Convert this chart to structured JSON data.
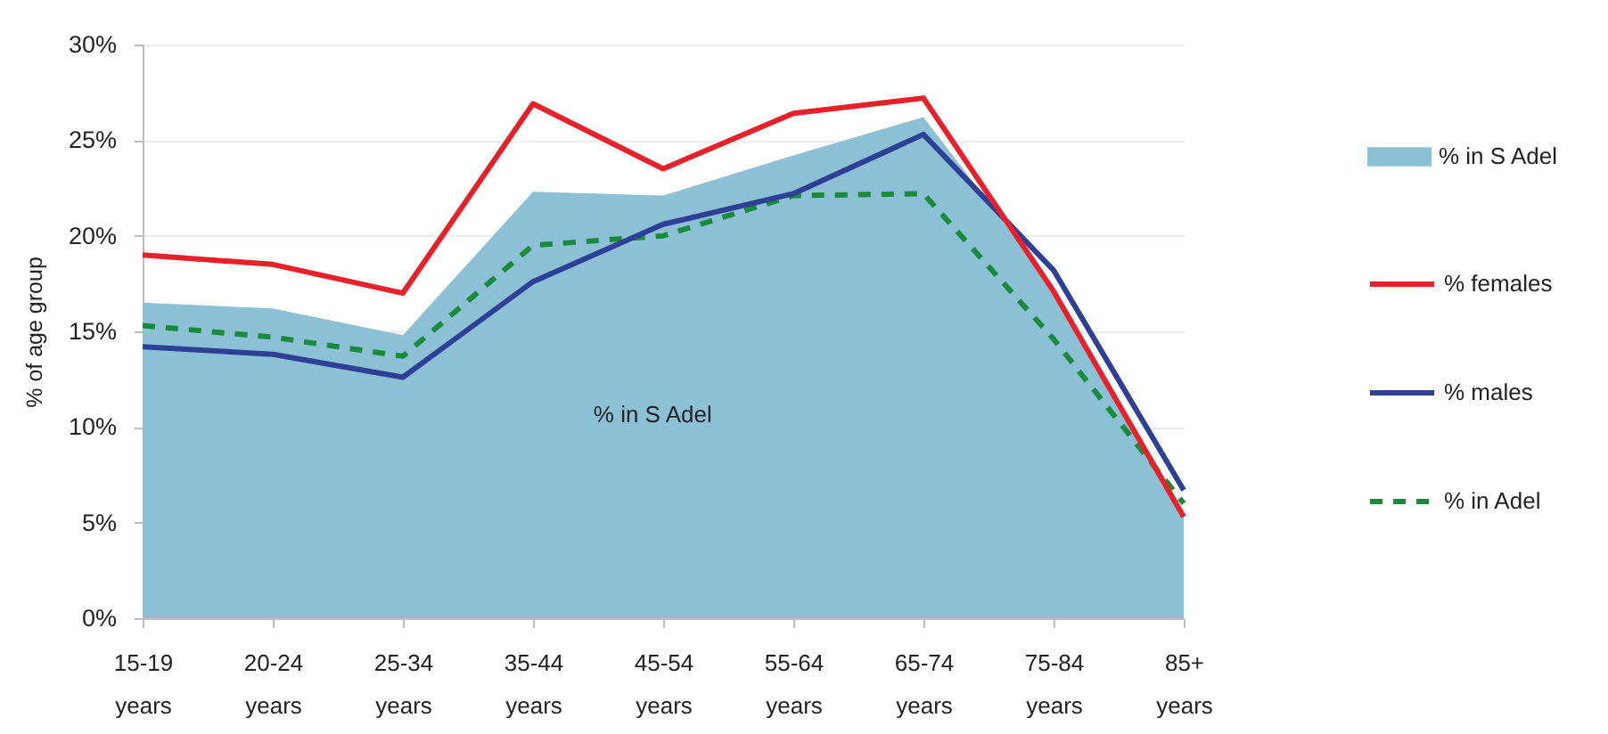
{
  "chart_data": {
    "type": "line",
    "ylabel": "% of age group",
    "categories": [
      "15-19 years",
      "20-24 years",
      "25-34 years",
      "35-44 years",
      "45-54 years",
      "55-64 years",
      "65-74 years",
      "75-84 years",
      "85+ years"
    ],
    "ylim": [
      0,
      30
    ],
    "yticks": [
      {
        "value": 0,
        "label": "0%"
      },
      {
        "value": 5,
        "label": "5%"
      },
      {
        "value": 10,
        "label": "10%"
      },
      {
        "value": 15,
        "label": "15%"
      },
      {
        "value": 20,
        "label": "20%"
      },
      {
        "value": 25,
        "label": "25%"
      },
      {
        "value": 30,
        "label": "30%"
      }
    ],
    "grid": "y",
    "legend": "right",
    "series": [
      {
        "name": "% in S Adel",
        "type": "area",
        "color": "#8cc1d5",
        "values": [
          16.5,
          16.2,
          14.8,
          22.3,
          22.1,
          24.2,
          26.2,
          17.3,
          5.5
        ]
      },
      {
        "name": "% females",
        "color": "#e8202a",
        "values": [
          19.0,
          18.5,
          17.0,
          26.9,
          23.5,
          26.4,
          27.2,
          17.1,
          5.3
        ]
      },
      {
        "name": "% males",
        "color": "#2e3f96",
        "values": [
          14.2,
          13.8,
          12.6,
          17.6,
          20.6,
          22.2,
          25.3,
          18.2,
          6.7
        ]
      },
      {
        "name": "% in Adel",
        "line_style": "dashed",
        "color": "#1a8a3c",
        "values": [
          15.3,
          14.7,
          13.7,
          19.5,
          20.0,
          22.1,
          22.2,
          14.6,
          6.0
        ]
      }
    ],
    "annotations": [
      "% in S Adel"
    ]
  }
}
